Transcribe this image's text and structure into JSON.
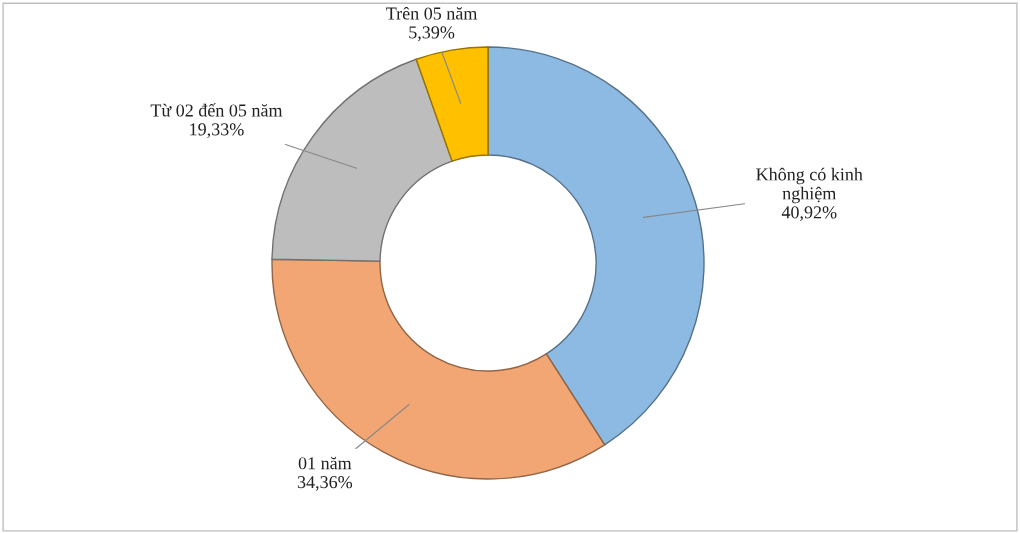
{
  "chart_data": {
    "type": "donut",
    "categories": [
      "Không có kinh\nnghiệm",
      "01 năm",
      "Từ 02 đến 05 năm",
      "Trên 05 năm"
    ],
    "values": [
      40.92,
      34.36,
      19.33,
      5.39
    ],
    "value_labels": [
      "40,92%",
      "34,36%",
      "19,33%",
      "5,39%"
    ],
    "colors": [
      "#8dbae3",
      "#f2a673",
      "#bdbdbd",
      "#ffc000"
    ],
    "legend": false
  }
}
